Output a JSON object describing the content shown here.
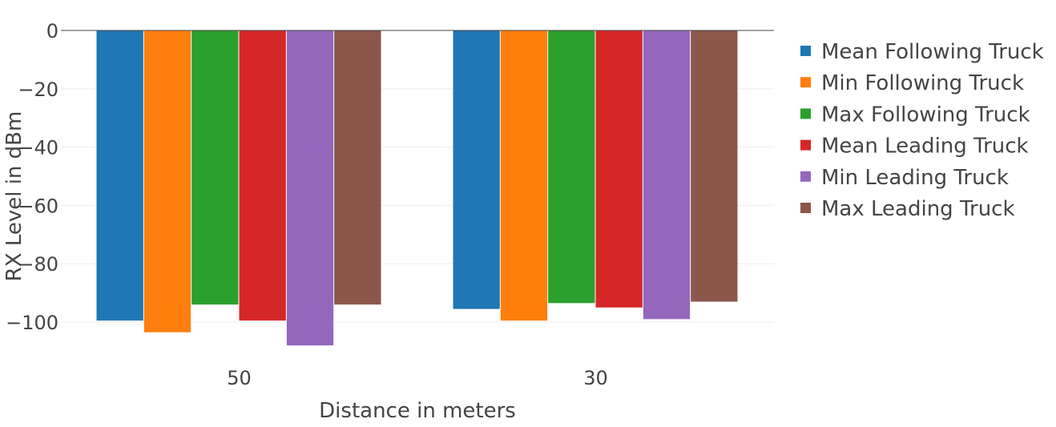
{
  "chart_data": {
    "type": "bar",
    "categories": [
      "50",
      "30"
    ],
    "series": [
      {
        "name": "Mean Following Truck",
        "color": "#1f77b4",
        "values": [
          -99.5,
          -95.5
        ]
      },
      {
        "name": "Min Following Truck",
        "color": "#ff7f0e",
        "values": [
          -103.5,
          -99.5
        ]
      },
      {
        "name": "Max Following Truck",
        "color": "#2ca02c",
        "values": [
          -94,
          -93.5
        ]
      },
      {
        "name": "Mean Leading Truck",
        "color": "#d62728",
        "values": [
          -99.5,
          -95
        ]
      },
      {
        "name": "Min Leading Truck",
        "color": "#9467bd",
        "values": [
          -108,
          -99
        ]
      },
      {
        "name": "Max Leading Truck",
        "color": "#8c564b",
        "values": [
          -94,
          -93
        ]
      }
    ],
    "xlabel": "Distance in meters",
    "ylabel": "RX Level in dBm",
    "ylim": [
      -115,
      0
    ],
    "yticks": [
      0,
      -20,
      -40,
      -60,
      -80,
      -100
    ],
    "ytick_labels": [
      "0",
      "−20",
      "−40",
      "−60",
      "−80",
      "−100"
    ],
    "grid": true,
    "legend_position": "right"
  }
}
